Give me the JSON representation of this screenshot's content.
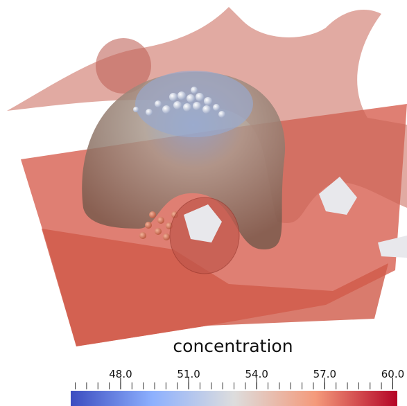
{
  "colorbar": {
    "title": "concentration",
    "range": [
      45.8,
      60.2
    ],
    "ticks": [
      {
        "value": 48,
        "label": "48.0"
      },
      {
        "value": 51,
        "label": "51.0"
      },
      {
        "value": 54,
        "label": "54.0"
      },
      {
        "value": 57,
        "label": "57.0"
      },
      {
        "value": 60,
        "label": "60.0"
      }
    ],
    "minor_step": 0.5,
    "colormap": [
      "#3b4cc0",
      "#8db0fe",
      "#dddddd",
      "#f49a7b",
      "#b40426"
    ]
  }
}
